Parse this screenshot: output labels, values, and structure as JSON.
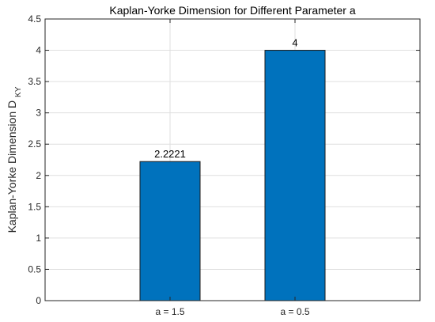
{
  "chart_data": {
    "type": "bar",
    "title": "Kaplan-Yorke Dimension for Different Parameter a",
    "xlabel": "",
    "ylabel": "Kaplan-Yorke Dimension D",
    "ylabel_subscript": "KY",
    "categories": [
      "a = 1.5",
      "a = 0.5"
    ],
    "values": [
      2.2221,
      4
    ],
    "data_labels": [
      "2.2221",
      "4"
    ],
    "ylim": [
      0,
      4.5
    ],
    "yticks": [
      0,
      0.5,
      1,
      1.5,
      2,
      2.5,
      3,
      3.5,
      4,
      4.5
    ],
    "ytick_labels": [
      "0",
      "0.5",
      "1",
      "1.5",
      "2",
      "2.5",
      "3",
      "3.5",
      "4",
      "4.5"
    ],
    "grid": true,
    "bar_color": "#0072BD",
    "bar_edge_color": "#1a1a1a",
    "grid_color": "#dfdfdf",
    "axis_color": "#262626"
  }
}
